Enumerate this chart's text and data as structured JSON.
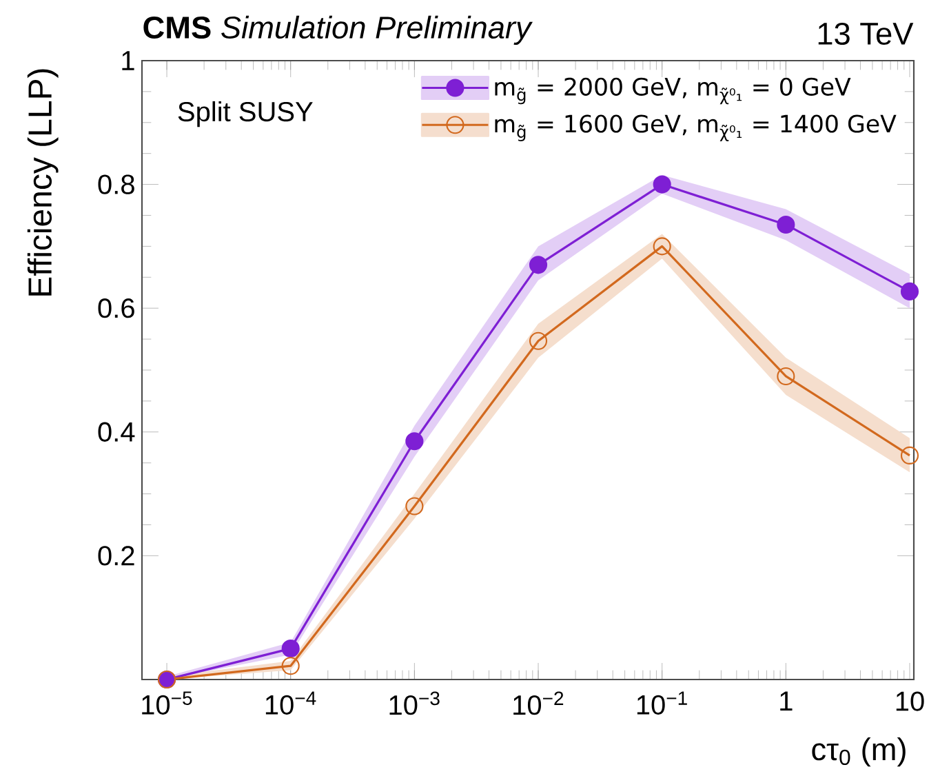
{
  "chart_data": {
    "type": "line",
    "title": "**CMS** *Simulation Preliminary*",
    "annotations": [
      "13 TeV",
      "Split SUSY"
    ],
    "xlabel": "cτ$_{0}$ (m)",
    "ylabel": "Efficiency (LLP)",
    "x": [
      1e-05,
      0.0001,
      0.001,
      0.01,
      0.1,
      1,
      10
    ],
    "series": [
      {
        "name": "m$_{g̃}$ = 2000 GeV, m$_{χ̃⁰₁}$ = 0 GeV",
        "color": "#7e1fd4",
        "marker": "circle",
        "values": [
          0.0,
          0.05,
          0.385,
          0.67,
          0.8,
          0.735,
          0.627
        ],
        "lower": [
          0.0,
          0.04,
          0.36,
          0.645,
          0.785,
          0.71,
          0.6
        ],
        "upper": [
          0.005,
          0.06,
          0.41,
          0.7,
          0.815,
          0.76,
          0.655
        ]
      },
      {
        "name": "m$_{g̃}$ = 1600 GeV, m$_{χ̃⁰₁}$ = 1400 GeV",
        "color": "#d2691e",
        "marker": "circle",
        "values": [
          0.0,
          0.022,
          0.28,
          0.547,
          0.7,
          0.49,
          0.362
        ],
        "lower": [
          0.0,
          0.015,
          0.26,
          0.52,
          0.68,
          0.46,
          0.335
        ],
        "upper": [
          0.005,
          0.03,
          0.3,
          0.575,
          0.72,
          0.52,
          0.39
        ]
      }
    ],
    "log": "x",
    "xlim": [
      6.3e-06,
      10.8
    ],
    "ylim": [
      0,
      1
    ],
    "xticks": [
      {
        "value": 1e-05,
        "label": "10$^{−5}$"
      },
      {
        "value": 0.0001,
        "label": "10$^{−4}$"
      },
      {
        "value": 0.001,
        "label": "10$^{−3}$"
      },
      {
        "value": 0.01,
        "label": "10$^{−2}$"
      },
      {
        "value": 0.1,
        "label": "10$^{−1}$"
      },
      1,
      10
    ],
    "yticks": [
      0.2,
      0.4,
      0.6,
      0.8,
      1
    ],
    "grid": false,
    "legend": "top right"
  }
}
